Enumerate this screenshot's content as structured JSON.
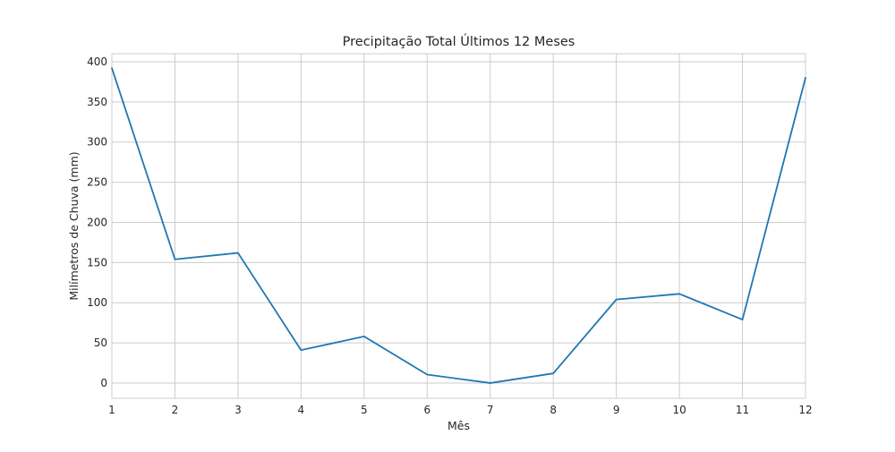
{
  "chart_data": {
    "type": "line",
    "title": "Precipitação Total Últimos 12 Meses",
    "xlabel": "Mês",
    "ylabel": "Milímetros de Chuva (mm)",
    "x": [
      1,
      2,
      3,
      4,
      5,
      6,
      7,
      8,
      9,
      10,
      11,
      12
    ],
    "x_ticks": [
      "1",
      "2",
      "3",
      "4",
      "5",
      "6",
      "7",
      "8",
      "9",
      "10",
      "11",
      "12"
    ],
    "y_ticks": [
      0,
      50,
      100,
      150,
      200,
      250,
      300,
      350,
      400
    ],
    "xlim": [
      1,
      12
    ],
    "ylim": [
      -19,
      410
    ],
    "grid": true,
    "series": [
      {
        "values": [
          392,
          154,
          162,
          41,
          58,
          10.5,
          0,
          12,
          104,
          111,
          79,
          380
        ],
        "color": "#1f77b4"
      }
    ]
  }
}
